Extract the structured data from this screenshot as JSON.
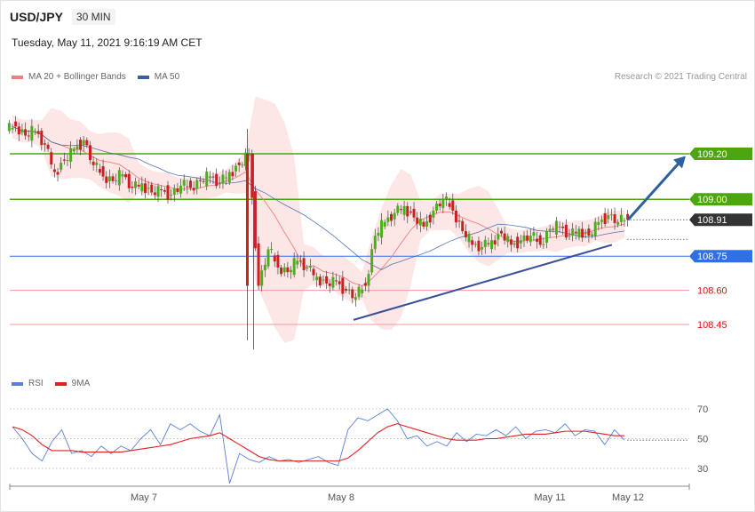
{
  "header": {
    "pair": "USD/JPY",
    "timeframe": "30 MIN",
    "datetime": "Tuesday, May 11, 2021 9:16:19 AM CET"
  },
  "legend_main": [
    {
      "label": "MA 20 + Bollinger Bands",
      "color": "#f08080"
    },
    {
      "label": "MA 50",
      "color": "#3a5fa0"
    }
  ],
  "legend_rsi": [
    {
      "label": "RSI",
      "color": "#5b7fd6"
    },
    {
      "label": "9MA",
      "color": "#e02020"
    }
  ],
  "credit": "Research © 2021 Trading Central",
  "colors": {
    "bull": "#4caf1a",
    "bear": "#cc1f1f",
    "resistance": "#4ca60f",
    "pivot": "#2f6fe8",
    "support": "#f29a9a",
    "band": "#fde3e3",
    "current": "#333333"
  },
  "chart_data": [
    {
      "type": "candlestick",
      "title": "USD/JPY",
      "ylim": [
        108.33,
        109.37
      ],
      "x_labels": [
        "May 7",
        "May 8",
        "May 11",
        "May 12"
      ],
      "levels": [
        {
          "value": 109.2,
          "label": "109.20",
          "kind": "resistance"
        },
        {
          "value": 109.0,
          "label": "109.00",
          "kind": "resistance"
        },
        {
          "value": 108.91,
          "label": "108.91",
          "kind": "current"
        },
        {
          "value": 108.75,
          "label": "108.75",
          "kind": "pivot"
        },
        {
          "value": 108.6,
          "label": "108.60",
          "kind": "support"
        },
        {
          "value": 108.45,
          "label": "108.45",
          "kind": "support"
        }
      ],
      "close_series": [
        109.32,
        109.28,
        109.3,
        109.24,
        109.12,
        109.17,
        109.22,
        109.26,
        109.15,
        109.1,
        109.08,
        109.11,
        109.05,
        109.07,
        109.03,
        109.04,
        109.02,
        109.06,
        109.05,
        109.08,
        109.1,
        109.07,
        109.12,
        109.15,
        109.2,
        108.62,
        108.78,
        108.7,
        108.68,
        108.73,
        108.7,
        108.66,
        108.63,
        108.64,
        108.6,
        108.57,
        108.62,
        108.84,
        108.9,
        108.94,
        108.97,
        108.92,
        108.88,
        108.95,
        109.0,
        108.95,
        108.86,
        108.8,
        108.79,
        108.82,
        108.85,
        108.8,
        108.82,
        108.84,
        108.8,
        108.87,
        108.88,
        108.84,
        108.87,
        108.84,
        108.9,
        108.93,
        108.9,
        108.91
      ],
      "trendline": {
        "from": 108.47,
        "to": 108.8
      },
      "arrow": {
        "from": 108.91,
        "to": 109.19
      }
    },
    {
      "type": "line",
      "title": "RSI",
      "ylim": [
        20,
        80
      ],
      "ticks": [
        70,
        50,
        30
      ],
      "current": 49,
      "series": [
        {
          "name": "RSI",
          "values": [
            58,
            50,
            40,
            35,
            48,
            56,
            40,
            42,
            38,
            45,
            40,
            45,
            42,
            50,
            56,
            46,
            60,
            56,
            60,
            55,
            52,
            66,
            20,
            40,
            36,
            34,
            38,
            35,
            36,
            34,
            36,
            38,
            34,
            32,
            56,
            64,
            62,
            66,
            70,
            62,
            50,
            52,
            45,
            48,
            45,
            54,
            48,
            53,
            52,
            56,
            52,
            58,
            50,
            55,
            56,
            54,
            60,
            52,
            56,
            55,
            46,
            56,
            49
          ]
        },
        {
          "name": "9MA",
          "values": [
            58,
            56,
            52,
            46,
            42,
            42,
            42,
            41,
            41,
            41,
            41,
            41,
            42,
            43,
            44,
            45,
            46,
            48,
            50,
            51,
            52,
            54,
            50,
            46,
            42,
            38,
            36,
            35,
            35,
            35,
            35,
            35,
            35,
            35,
            37,
            42,
            48,
            54,
            58,
            60,
            58,
            56,
            54,
            52,
            50,
            49,
            49,
            49,
            50,
            50,
            51,
            52,
            53,
            53,
            53,
            54,
            55,
            55,
            55,
            54,
            53,
            52,
            52
          ]
        }
      ]
    }
  ]
}
